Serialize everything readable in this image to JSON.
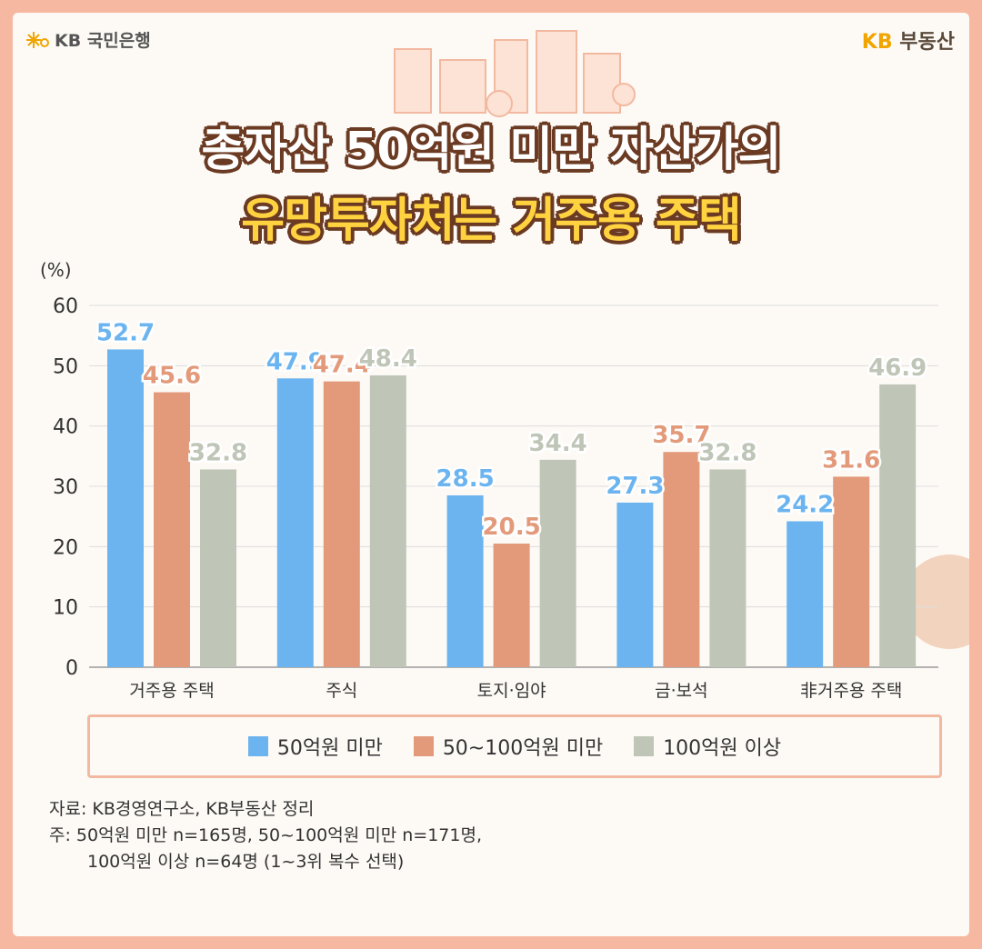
{
  "header": {
    "bank_logo_text": "KB 국민은행",
    "brand_logo_kb": "KB",
    "brand_logo_text": "부동산"
  },
  "title": {
    "line1": "총자산 50억원 미만 자산가의",
    "line2": "유망투자처는 거주용 주택"
  },
  "chart_data": {
    "type": "bar",
    "ylabel": "(%)",
    "ylim": [
      0,
      60
    ],
    "yticks": [
      "0",
      "10",
      "20",
      "30",
      "40",
      "50",
      "60"
    ],
    "categories": [
      "거주용 주택",
      "주식",
      "토지·임야",
      "금·보석",
      "非거주용 주택"
    ],
    "series": [
      {
        "name": "50억원 미만",
        "color": "#6cb4ef",
        "values": [
          52.7,
          47.9,
          28.5,
          27.3,
          24.2
        ]
      },
      {
        "name": "50~100억원 미만",
        "color": "#e39a7a",
        "values": [
          45.6,
          47.4,
          20.5,
          35.7,
          31.6
        ]
      },
      {
        "name": "100억원 이상",
        "color": "#bfc5b7",
        "values": [
          32.8,
          48.4,
          34.4,
          32.8,
          46.9
        ]
      }
    ],
    "grid": true,
    "legend_position": "bottom"
  },
  "notes": {
    "source": "자료: KB경영연구소, KB부동산 정리",
    "note_line1": "주: 50억원 미만 n=165명, 50~100억원 미만 n=171명,",
    "note_line2": "100억원 이상 n=64명 (1~3위 복수 선택)"
  }
}
